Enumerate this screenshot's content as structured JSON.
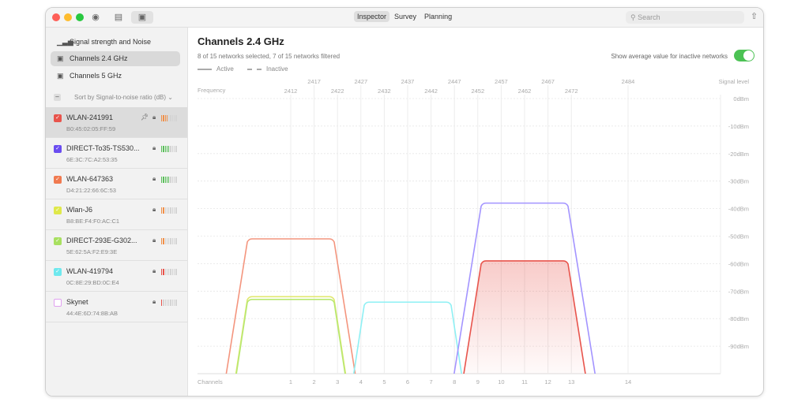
{
  "toolbar": {
    "segments": [
      "Inspector",
      "Survey",
      "Planning"
    ],
    "active_segment": "Inspector",
    "search_placeholder": "Search"
  },
  "sidebar": {
    "nav": [
      {
        "label": "Signal strength and Noise",
        "icon": "bar-chart-icon",
        "selected": false
      },
      {
        "label": "Channels 2.4 GHz",
        "icon": "channel-icon",
        "selected": true
      },
      {
        "label": "Channels 5 GHz",
        "icon": "channel-icon",
        "selected": false
      }
    ],
    "sort_label": "Sort by Signal-to-noise ratio (dB) ⌄",
    "networks": [
      {
        "name": "WLAN-241991",
        "mac": "B0:45:02:05:FF:59",
        "color": "#e8544c",
        "checked": true,
        "pinned": true,
        "selected": true,
        "signal_bars": 4,
        "signal_color": "#f0904a"
      },
      {
        "name": "DIRECT-To35-TS530...",
        "mac": "6E:3C:7C:A2:53:35",
        "color": "#6a4df0",
        "checked": true,
        "pinned": false,
        "selected": false,
        "signal_bars": 5,
        "signal_color": "#5cbf5c"
      },
      {
        "name": "WLAN-647363",
        "mac": "D4:21:22:66:6C:53",
        "color": "#f07a50",
        "checked": true,
        "pinned": false,
        "selected": false,
        "signal_bars": 5,
        "signal_color": "#5cbf5c"
      },
      {
        "name": "Wlan-J6",
        "mac": "B8:BE:F4:F0:AC:C1",
        "color": "#dfe84a",
        "checked": true,
        "pinned": false,
        "selected": false,
        "signal_bars": 2,
        "signal_color": "#f0904a"
      },
      {
        "name": "DIRECT-293E-G302...",
        "mac": "5E:62:5A:F2:E9:3E",
        "color": "#a8e060",
        "checked": true,
        "pinned": false,
        "selected": false,
        "signal_bars": 2,
        "signal_color": "#f0904a"
      },
      {
        "name": "WLAN-419794",
        "mac": "0C:8E:29:BD:0C:E4",
        "color": "#6ee8ee",
        "checked": true,
        "pinned": false,
        "selected": false,
        "signal_bars": 2,
        "signal_color": "#e8544c"
      },
      {
        "name": "Skynet",
        "mac": "44:4E:6D:74:8B:AB",
        "color": "#e0a0f0",
        "checked": false,
        "pinned": false,
        "selected": false,
        "signal_bars": 1,
        "signal_color": "#e8544c"
      }
    ]
  },
  "main": {
    "title": "Channels 2.4 GHz",
    "subtitle": "8 of 15 networks selected, 7 of 15 networks filtered",
    "legend_active": "Active",
    "legend_inactive": "Inactive",
    "toggle_label": "Show average value for inactive networks",
    "toggle_on": true
  },
  "chart_data": {
    "type": "area",
    "xlabel_top": "Frequency",
    "xlabel_bottom": "Channels",
    "ylabel": "Signal level",
    "channels": [
      1,
      2,
      3,
      4,
      5,
      6,
      7,
      8,
      9,
      10,
      11,
      12,
      13,
      14
    ],
    "frequencies": [
      2412,
      2417,
      2422,
      2427,
      2432,
      2437,
      2442,
      2447,
      2452,
      2457,
      2462,
      2467,
      2472,
      2484
    ],
    "y_ticks": [
      "0dBm",
      "-10dBm",
      "-20dBm",
      "-30dBm",
      "-40dBm",
      "-50dBm",
      "-60dBm",
      "-70dBm",
      "-80dBm",
      "-90dBm"
    ],
    "ylim": [
      -100,
      0
    ],
    "series": [
      {
        "network": "WLAN-647363",
        "channel": 1,
        "level_dbm": -51,
        "color": "#f4957e",
        "filled": false
      },
      {
        "network": "Wlan-J6",
        "channel": 1,
        "level_dbm": -72,
        "color": "#e0e870",
        "filled": false
      },
      {
        "network": "DIRECT-293E-G302...",
        "channel": 1,
        "level_dbm": -73,
        "color": "#b8e870",
        "filled": false
      },
      {
        "network": "WLAN-419794",
        "channel": 6,
        "level_dbm": -74,
        "color": "#8ef0f4",
        "filled": false
      },
      {
        "network": "DIRECT-To35-TS530...",
        "channel": 11,
        "level_dbm": -38,
        "color": "#a394ff",
        "filled": false
      },
      {
        "network": "WLAN-241991",
        "channel": 11,
        "level_dbm": -59,
        "color": "#e8544c",
        "filled": true
      }
    ]
  }
}
